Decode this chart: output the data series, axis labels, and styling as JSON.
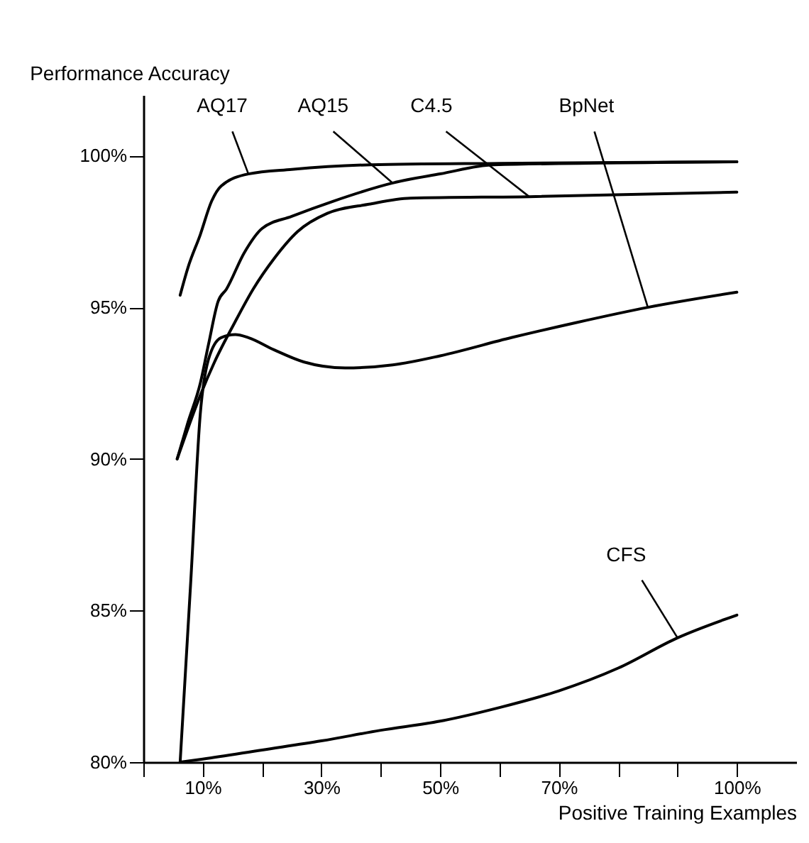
{
  "chart_data": {
    "type": "line",
    "ylabel": "Performance Accuracy",
    "xlabel": "Positive Training Examples",
    "xlim": [
      0,
      110
    ],
    "ylim": [
      80,
      102
    ],
    "xticks": [
      {
        "value": 0,
        "label": null
      },
      {
        "value": 10,
        "label": "10%"
      },
      {
        "value": 20,
        "label": null
      },
      {
        "value": 30,
        "label": "30%"
      },
      {
        "value": 40,
        "label": null
      },
      {
        "value": 50,
        "label": "50%"
      },
      {
        "value": 60,
        "label": null
      },
      {
        "value": 70,
        "label": "70%"
      },
      {
        "value": 80,
        "label": null
      },
      {
        "value": 90,
        "label": null
      },
      {
        "value": 100,
        "label": "100%"
      }
    ],
    "yticks": [
      {
        "value": 80,
        "label": "80%"
      },
      {
        "value": 85,
        "label": "85%"
      },
      {
        "value": 90,
        "label": "90%"
      },
      {
        "value": 95,
        "label": "95%"
      },
      {
        "value": 100,
        "label": "100%"
      }
    ],
    "grid": false,
    "marker": "none",
    "line_style": "solid",
    "series": [
      {
        "name": "AQ17",
        "color": "#000000",
        "x": [
          6.2,
          7.5,
          9.6,
          11.5,
          13.1,
          17.7,
          25,
          38.3,
          60,
          100
        ],
        "values": [
          95.4,
          96.3,
          97.4,
          98.5,
          99.0,
          99.4,
          99.55,
          99.7,
          99.75,
          99.8
        ]
      },
      {
        "name": "AQ15",
        "color": "#000000",
        "x": [
          5.7,
          7.5,
          9.6,
          11,
          12.6,
          14,
          17,
          20,
          25,
          32,
          42,
          50,
          59,
          100
        ],
        "values": [
          90.0,
          91.2,
          92.5,
          93.8,
          95.2,
          95.6,
          96.8,
          97.6,
          98.0,
          98.5,
          99.1,
          99.4,
          99.7,
          99.8
        ]
      },
      {
        "name": "C4.5",
        "color": "#000000",
        "x": [
          5.7,
          7.5,
          9.6,
          12,
          15.4,
          18.5,
          22,
          26,
          31,
          38,
          45,
          65,
          100
        ],
        "values": [
          90.0,
          91.0,
          92.1,
          93.2,
          94.5,
          95.6,
          96.6,
          97.5,
          98.1,
          98.4,
          98.6,
          98.65,
          98.8
        ]
      },
      {
        "name": "BpNet",
        "color": "#000000",
        "x": [
          6.2,
          7.1,
          8.0,
          9.6,
          11,
          13.1,
          15.5,
          17.7,
          22,
          27,
          34,
          42,
          50,
          62,
          73,
          85,
          100
        ],
        "values": [
          80.0,
          83.0,
          86.0,
          91.5,
          93.3,
          94.0,
          94.1,
          94.0,
          93.6,
          93.2,
          93.0,
          93.1,
          93.4,
          94.0,
          94.5,
          95.0,
          95.5
        ]
      },
      {
        "name": "CFS",
        "color": "#000000",
        "x": [
          6.2,
          10,
          20,
          30,
          40,
          50,
          60,
          70,
          80,
          90,
          100
        ],
        "values": [
          80.0,
          80.1,
          80.4,
          80.7,
          81.05,
          81.35,
          81.8,
          82.35,
          83.1,
          84.1,
          84.85
        ]
      }
    ]
  }
}
